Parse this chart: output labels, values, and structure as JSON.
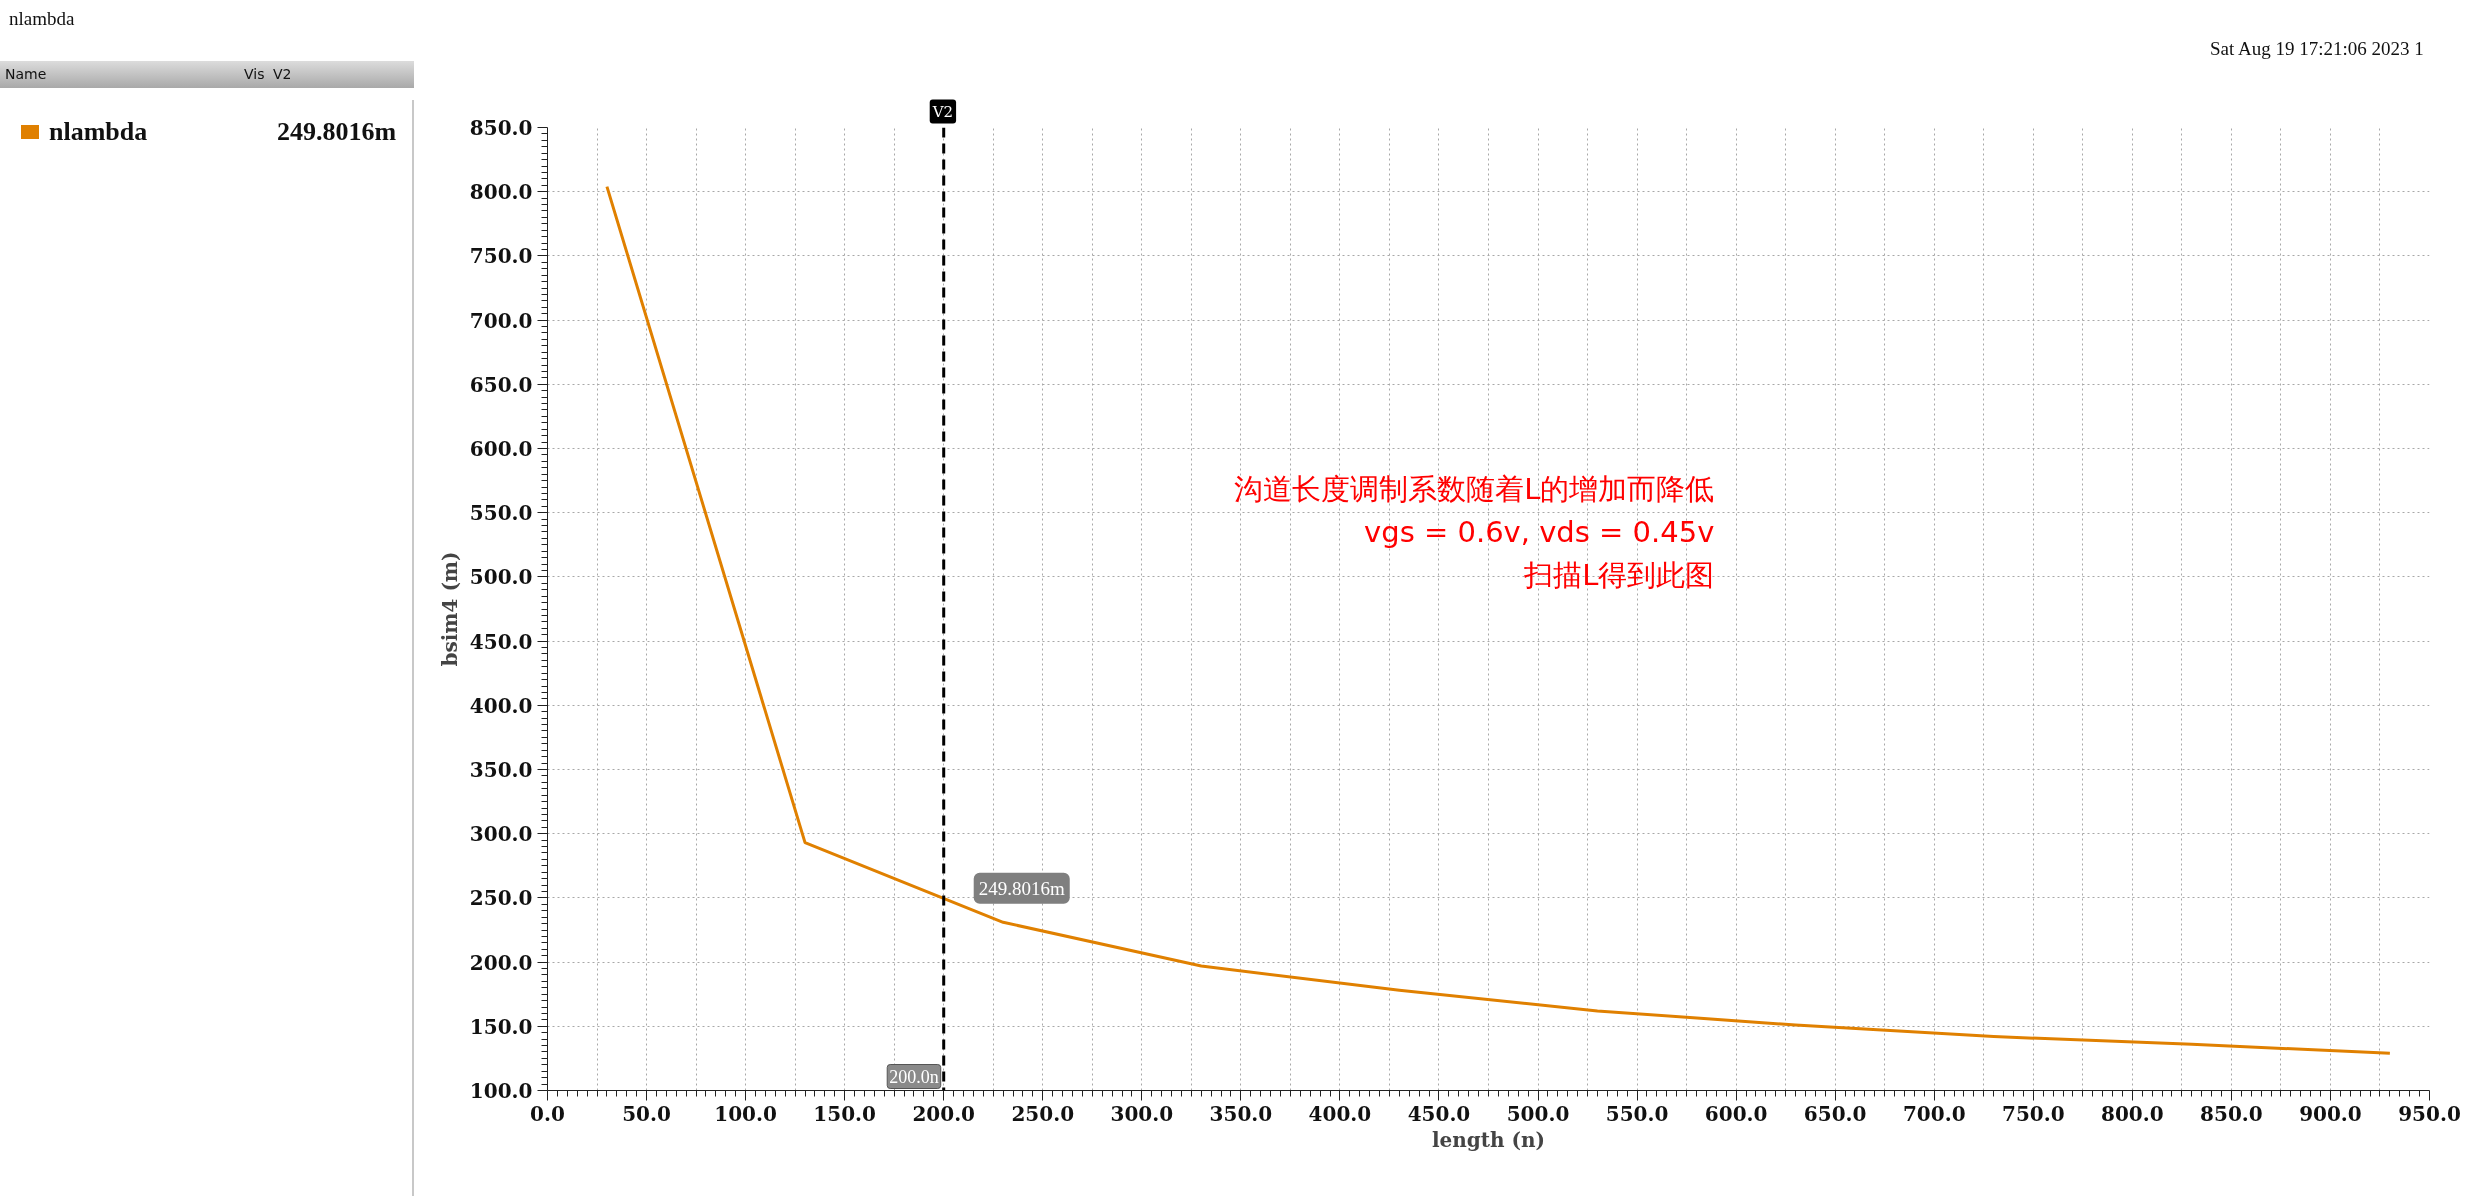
{
  "chart_data": {
    "type": "line",
    "title": "nlambda",
    "xlabel": "length (n)",
    "ylabel": "bsim4 (m)",
    "x": [
      30,
      130,
      230,
      330,
      430,
      530,
      630,
      730,
      830,
      930
    ],
    "series": [
      {
        "name": "nlambda",
        "color": "#e08000",
        "values": [
          804,
          293,
          231,
          197,
          178,
          162,
          151,
          142,
          136,
          129
        ]
      }
    ],
    "xlim": [
      0,
      950
    ],
    "xticks": [
      {
        "value": 0,
        "label": "0.0"
      },
      {
        "value": 50,
        "label": "50.0"
      },
      {
        "value": 100,
        "label": "100.0"
      },
      {
        "value": 150,
        "label": "150.0"
      },
      {
        "value": 200,
        "label": "200.0"
      },
      {
        "value": 250,
        "label": "250.0"
      },
      {
        "value": 300,
        "label": "300.0"
      },
      {
        "value": 350,
        "label": "350.0"
      },
      {
        "value": 400,
        "label": "400.0"
      },
      {
        "value": 450,
        "label": "450.0"
      },
      {
        "value": 500,
        "label": "500.0"
      },
      {
        "value": 550,
        "label": "550.0"
      },
      {
        "value": 600,
        "label": "600.0"
      },
      {
        "value": 650,
        "label": "650.0"
      },
      {
        "value": 700,
        "label": "700.0"
      },
      {
        "value": 750,
        "label": "750.0"
      },
      {
        "value": 800,
        "label": "800.0"
      },
      {
        "value": 850,
        "label": "850.0"
      },
      {
        "value": 900,
        "label": "900.0"
      },
      {
        "value": 950,
        "label": "950.0"
      }
    ],
    "ylim": [
      100,
      850
    ],
    "yticks": [
      {
        "value": 100,
        "label": "100.0"
      },
      {
        "value": 150,
        "label": "150.0"
      },
      {
        "value": 200,
        "label": "200.0"
      },
      {
        "value": 250,
        "label": "250.0"
      },
      {
        "value": 300,
        "label": "300.0"
      },
      {
        "value": 350,
        "label": "350.0"
      },
      {
        "value": 400,
        "label": "400.0"
      },
      {
        "value": 450,
        "label": "450.0"
      },
      {
        "value": 500,
        "label": "500.0"
      },
      {
        "value": 550,
        "label": "550.0"
      },
      {
        "value": 600,
        "label": "600.0"
      },
      {
        "value": 650,
        "label": "650.0"
      },
      {
        "value": 700,
        "label": "700.0"
      },
      {
        "value": 750,
        "label": "750.0"
      },
      {
        "value": 800,
        "label": "800.0"
      },
      {
        "value": 850,
        "label": "850.0"
      }
    ],
    "grid": true,
    "legend": "left",
    "ref_lines": [
      {
        "axis": "x",
        "value": 200,
        "label": "V2",
        "color": "#000000",
        "line_style": "dashed"
      }
    ],
    "annotations": [
      "沟道长度调制系数随着L的增加而降低",
      "vgs = 0.6v, vds = 0.45v",
      "扫描L得到此图",
      "Sat Aug 19 17:21:06 2023  1",
      "Name",
      "Vis",
      "V2",
      "249.8016m",
      {
        "text": "249.8016m",
        "x": 200,
        "y": 249.8016
      },
      {
        "text": "200.0n",
        "x": 200,
        "y": 100
      }
    ]
  }
}
